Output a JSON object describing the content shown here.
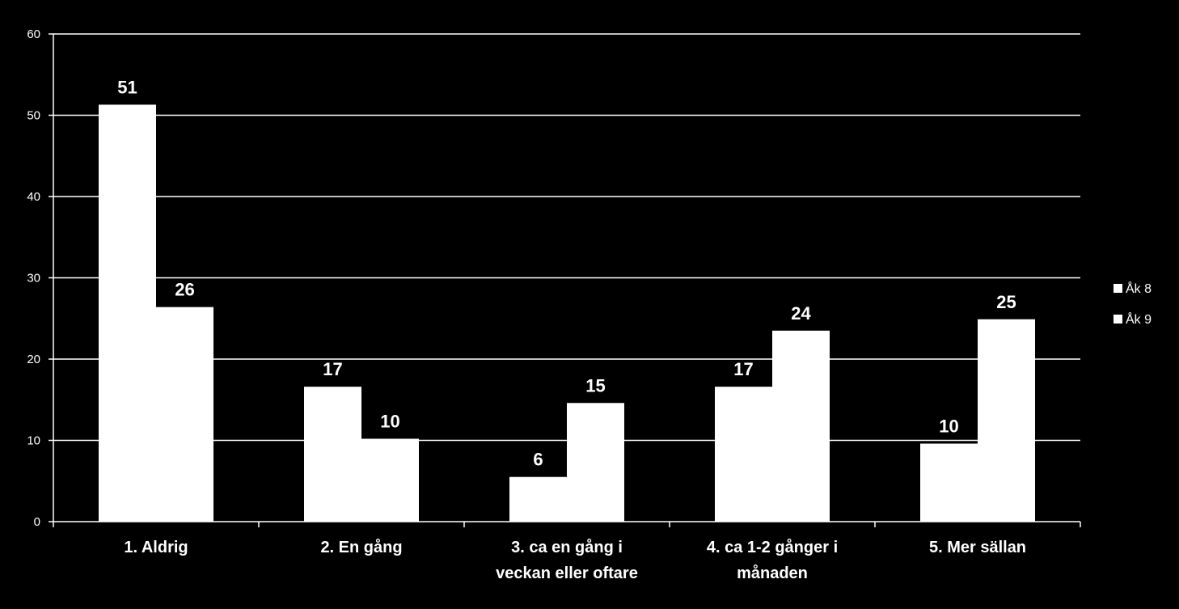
{
  "chart_data": {
    "type": "bar",
    "categories": [
      [
        "1. Aldrig"
      ],
      [
        "2. En gång"
      ],
      [
        "3. ca en gång i",
        "veckan eller oftare"
      ],
      [
        "4. ca 1-2 gånger i",
        "månaden"
      ],
      [
        "5. Mer sällan"
      ]
    ],
    "series": [
      {
        "name": "Åk 8",
        "values": [
          51.3,
          16.6,
          5.5,
          16.6,
          9.6
        ],
        "labels": [
          "51",
          "17",
          "6",
          "17",
          "10"
        ]
      },
      {
        "name": "Åk 9",
        "values": [
          26.4,
          10.2,
          14.6,
          23.5,
          24.9
        ],
        "labels": [
          "26",
          "10",
          "15",
          "24",
          "25"
        ]
      }
    ],
    "ylim": [
      0,
      60
    ],
    "yticks": [
      0,
      10,
      20,
      30,
      40,
      50,
      60
    ],
    "grid": true,
    "legend_position": "right",
    "colors": {
      "background": "#000000",
      "bars": "#ffffff",
      "grid": "#ffffff",
      "text": "#ffffff"
    }
  }
}
